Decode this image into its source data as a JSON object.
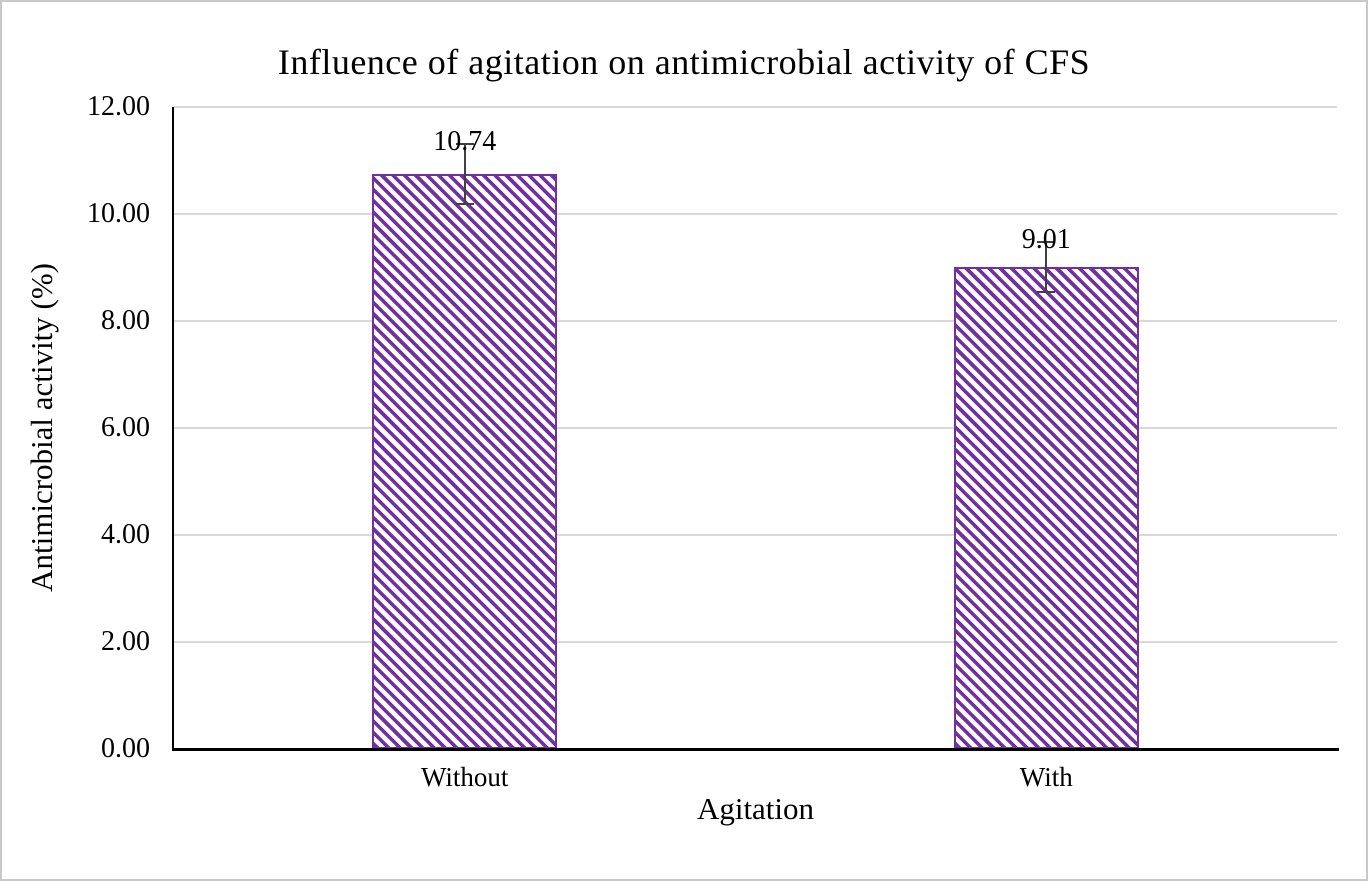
{
  "chart_data": {
    "type": "bar",
    "title": "Influence of agitation on antimicrobial activity of CFS",
    "xlabel": "Agitation",
    "ylabel": "Antimicrobial activity (%)",
    "categories": [
      "Without",
      "With"
    ],
    "values": [
      10.74,
      9.01
    ],
    "data_labels": [
      "10.74",
      "9.01"
    ],
    "error_bars": [
      0.56,
      0.46
    ],
    "ylim": [
      0,
      12
    ],
    "ytick_step": 2,
    "yticks": [
      "0.00",
      "2.00",
      "4.00",
      "6.00",
      "8.00",
      "10.00",
      "12.00"
    ],
    "grid": true,
    "legend": false,
    "colors": {
      "bar_stripe": "#7030a0",
      "bar_background": "#ffffff",
      "gridline": "#d9d9d9",
      "axis_line": "#000000",
      "error_bar": "#404040",
      "text": "#000000",
      "figure_border": "#c8c8c8"
    }
  }
}
